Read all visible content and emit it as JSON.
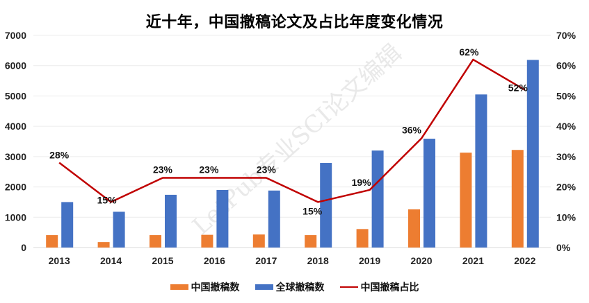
{
  "chart_data": {
    "type": "bar+line",
    "title": "近十年，中国撤稿论文及占比年度变化情况",
    "categories": [
      "2013",
      "2014",
      "2015",
      "2016",
      "2017",
      "2018",
      "2019",
      "2020",
      "2021",
      "2022"
    ],
    "series": [
      {
        "name": "中国撤稿数",
        "type": "bar",
        "axis": "left",
        "color": "#ED7D31",
        "values": [
          410,
          180,
          410,
          420,
          430,
          410,
          610,
          1260,
          3130,
          3220
        ]
      },
      {
        "name": "全球撤稿数",
        "type": "bar",
        "axis": "left",
        "color": "#4472C4",
        "values": [
          1500,
          1180,
          1740,
          1900,
          1880,
          2790,
          3200,
          3590,
          5050,
          6190
        ]
      },
      {
        "name": "中国撤稿占比",
        "type": "line",
        "axis": "right",
        "color": "#C00000",
        "values": [
          28,
          15,
          23,
          23,
          23,
          15,
          19,
          36,
          62,
          52
        ],
        "labels": [
          "28%",
          "15%",
          "23%",
          "23%",
          "23%",
          "15%",
          "19%",
          "36%",
          "62%",
          "52%"
        ]
      }
    ],
    "left_axis": {
      "min": 0,
      "max": 7000,
      "step": 1000,
      "ticks": [
        "0",
        "1000",
        "2000",
        "3000",
        "4000",
        "5000",
        "6000",
        "7000"
      ]
    },
    "right_axis": {
      "min": 0,
      "max": 70,
      "step": 10,
      "ticks": [
        "0%",
        "10%",
        "20%",
        "30%",
        "40%",
        "50%",
        "60%",
        "70%"
      ]
    },
    "xlabel": "",
    "ylabel": "",
    "grid": true,
    "legend_position": "bottom"
  },
  "watermark": "LetPub专业SCI论文编辑",
  "legend": [
    {
      "label": "中国撤稿数",
      "color": "#ED7D31",
      "kind": "bar"
    },
    {
      "label": "全球撤稿数",
      "color": "#4472C4",
      "kind": "bar"
    },
    {
      "label": "中国撤稿占比",
      "color": "#C00000",
      "kind": "line"
    }
  ]
}
